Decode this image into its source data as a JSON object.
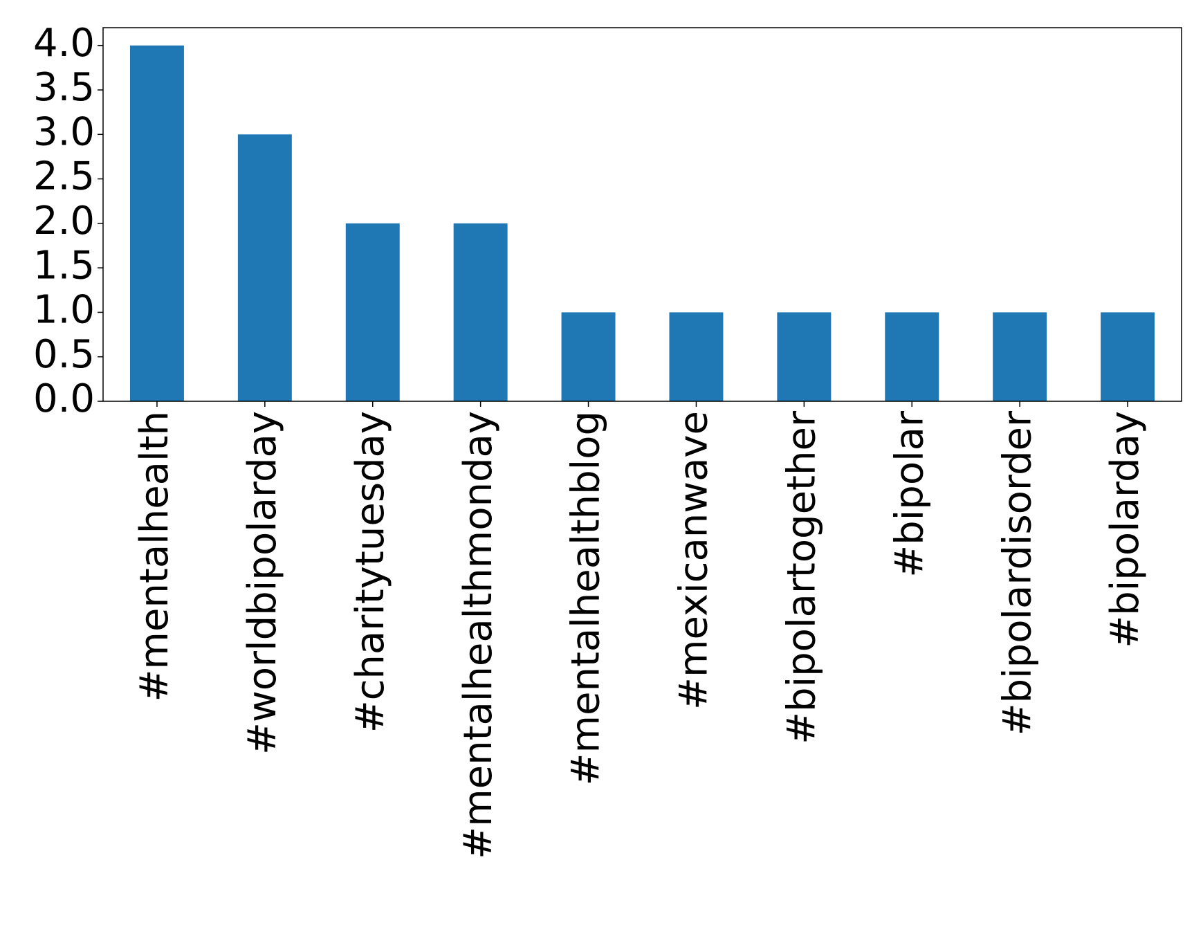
{
  "chart_data": {
    "type": "bar",
    "categories": [
      "#mentalhealth",
      "#worldbipolarday",
      "#charitytuesday",
      "#mentalhealthmonday",
      "#mentalhealthblog",
      "#mexicanwave",
      "#bipolartogether",
      "#bipolar",
      "#bipolardisorder",
      "#bipolarday"
    ],
    "values": [
      4,
      3,
      2,
      2,
      1,
      1,
      1,
      1,
      1,
      1
    ],
    "color": "#1f77b4",
    "ylim": [
      0,
      4.2
    ],
    "yticks": [
      {
        "value": 0,
        "label": "0.0"
      },
      {
        "value": 0.5,
        "label": "0.5"
      },
      {
        "value": 1,
        "label": "1.0"
      },
      {
        "value": 1.5,
        "label": "1.5"
      },
      {
        "value": 2,
        "label": "2.0"
      },
      {
        "value": 2.5,
        "label": "2.5"
      },
      {
        "value": 3,
        "label": "3.0"
      },
      {
        "value": 3.5,
        "label": "3.5"
      },
      {
        "value": 4,
        "label": "4.0"
      }
    ],
    "grid": false
  }
}
